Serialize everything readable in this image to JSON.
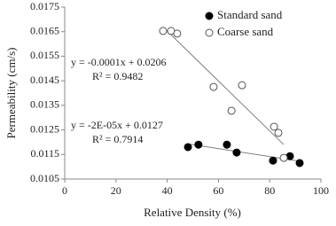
{
  "chart_data": {
    "type": "scatter",
    "x_label": "Relative Density (%)",
    "y_label": "Permeability (cm/s)",
    "xlim": [
      0,
      100
    ],
    "xticks": [
      0,
      20,
      40,
      60,
      80,
      100
    ],
    "ylim": [
      0.0105,
      0.0175
    ],
    "yticks": [
      0.0105,
      0.0115,
      0.0125,
      0.0135,
      0.0145,
      0.0155,
      0.0165,
      0.0175
    ],
    "grid": false,
    "legend": "upper right",
    "trendline_color": "#808080",
    "series": [
      {
        "name": "Standard sand",
        "color": "#000000",
        "filled": true,
        "x": [
          48.1,
          52.2,
          63.3,
          67.1,
          81.3,
          87.9,
          91.7
        ],
        "values": [
          0.0118,
          0.0119,
          0.0119,
          0.01158,
          0.01125,
          0.01143,
          0.01115
        ]
      },
      {
        "name": "Coarse sand",
        "color": "#555555",
        "filled": false,
        "x": [
          38.4,
          41.5,
          43.9,
          58.1,
          65.1,
          69.2,
          81.7,
          83.4,
          85.5
        ],
        "values": [
          0.01653,
          0.01653,
          0.01642,
          0.01425,
          0.01328,
          0.01432,
          0.01263,
          0.01238,
          0.01136
        ]
      }
    ],
    "annotations": [
      "y = -0.0001x + 0.0206",
      "R² = 0.9482",
      "y = -2E-05x + 0.0127",
      "R² = 0.7914"
    ]
  }
}
